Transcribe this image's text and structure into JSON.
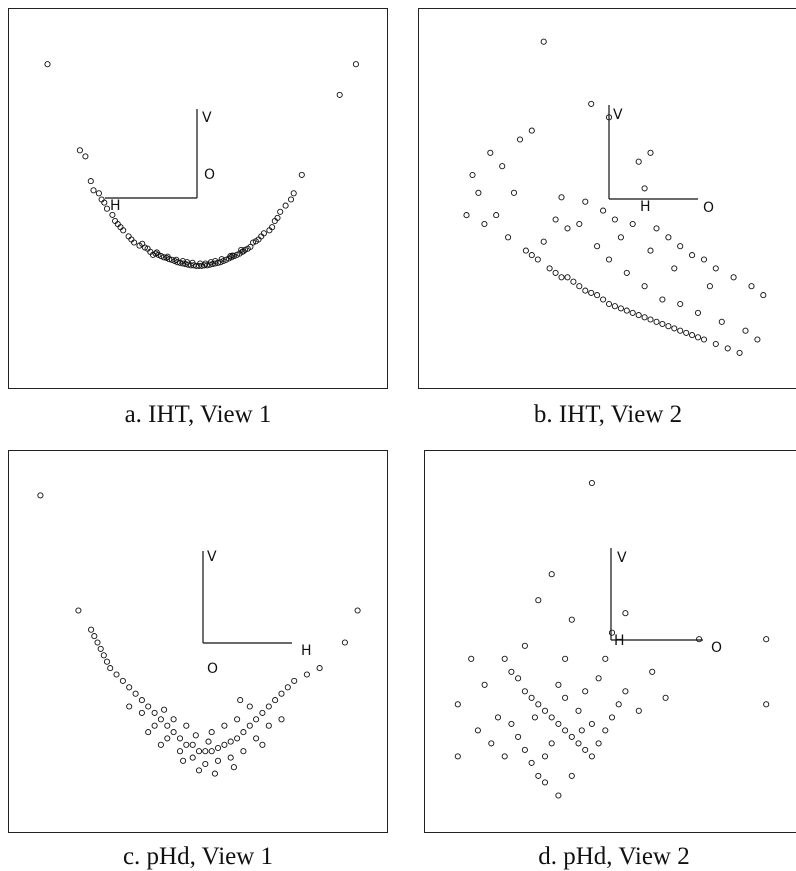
{
  "chart_data": [
    {
      "type": "scatter",
      "caption": "a. IHT, View 1",
      "axis_labels": {
        "v": "V",
        "o": "O",
        "h": "H"
      },
      "points": [
        [
          -2.8,
          3.1
        ],
        [
          2.9,
          3.1
        ],
        [
          2.6,
          2.6
        ],
        [
          -2.2,
          1.7
        ],
        [
          -2.1,
          1.6
        ],
        [
          1.9,
          1.3
        ],
        [
          -2.0,
          1.2
        ],
        [
          -1.95,
          1.05
        ],
        [
          -1.85,
          1.0
        ],
        [
          -1.8,
          0.9
        ],
        [
          -1.75,
          0.85
        ],
        [
          -1.7,
          0.75
        ],
        [
          1.75,
          1.0
        ],
        [
          1.7,
          0.9
        ],
        [
          1.6,
          0.8
        ],
        [
          1.5,
          0.7
        ],
        [
          1.45,
          0.6
        ],
        [
          1.4,
          0.55
        ],
        [
          -1.6,
          0.65
        ],
        [
          -1.55,
          0.55
        ],
        [
          -1.5,
          0.5
        ],
        [
          -1.45,
          0.45
        ],
        [
          -1.4,
          0.4
        ],
        [
          -1.3,
          0.3
        ],
        [
          -1.25,
          0.25
        ],
        [
          -1.2,
          0.2
        ],
        [
          1.35,
          0.45
        ],
        [
          1.3,
          0.4
        ],
        [
          1.2,
          0.35
        ],
        [
          1.15,
          0.3
        ],
        [
          1.1,
          0.25
        ],
        [
          1.0,
          0.2
        ],
        [
          -1.1,
          0.15
        ],
        [
          -1.0,
          0.12
        ],
        [
          -0.95,
          0.1
        ],
        [
          -0.9,
          0.05
        ],
        [
          -0.8,
          0.02
        ],
        [
          -0.75,
          0.0
        ],
        [
          -0.7,
          -0.02
        ],
        [
          -0.6,
          -0.05
        ],
        [
          -0.55,
          -0.07
        ],
        [
          -0.5,
          -0.08
        ],
        [
          -0.45,
          -0.1
        ],
        [
          -0.4,
          -0.12
        ],
        [
          -0.35,
          -0.13
        ],
        [
          -0.3,
          -0.14
        ],
        [
          -0.25,
          -0.15
        ],
        [
          -0.2,
          -0.16
        ],
        [
          -0.15,
          -0.17
        ],
        [
          -0.1,
          -0.17
        ],
        [
          -0.05,
          -0.18
        ],
        [
          0.0,
          -0.18
        ],
        [
          0.05,
          -0.18
        ],
        [
          0.1,
          -0.17
        ],
        [
          0.15,
          -0.17
        ],
        [
          0.2,
          -0.16
        ],
        [
          0.25,
          -0.15
        ],
        [
          0.3,
          -0.14
        ],
        [
          0.35,
          -0.13
        ],
        [
          0.4,
          -0.12
        ],
        [
          0.45,
          -0.1
        ],
        [
          0.5,
          -0.08
        ],
        [
          0.55,
          -0.06
        ],
        [
          0.6,
          -0.04
        ],
        [
          0.65,
          -0.02
        ],
        [
          0.7,
          0.0
        ],
        [
          0.75,
          0.02
        ],
        [
          0.8,
          0.05
        ],
        [
          0.85,
          0.08
        ],
        [
          0.9,
          0.1
        ],
        [
          0.95,
          0.13
        ],
        [
          -0.85,
          0.0
        ],
        [
          -0.65,
          -0.04
        ],
        [
          -0.42,
          -0.08
        ],
        [
          -0.22,
          -0.12
        ],
        [
          0.02,
          -0.14
        ],
        [
          0.22,
          -0.12
        ],
        [
          0.42,
          -0.07
        ],
        [
          0.62,
          -0.01
        ],
        [
          0.82,
          0.06
        ],
        [
          -1.05,
          0.18
        ],
        [
          1.05,
          0.22
        ],
        [
          -0.3,
          -0.1
        ],
        [
          0.3,
          -0.1
        ],
        [
          -0.12,
          -0.13
        ],
        [
          0.12,
          -0.14
        ],
        [
          -0.58,
          -0.03
        ],
        [
          0.58,
          -0.02
        ],
        [
          -0.78,
          0.04
        ],
        [
          0.78,
          0.08
        ]
      ],
      "xlim": [
        -3.4,
        3.4
      ],
      "ylim": [
        -2.1,
        3.9
      ]
    },
    {
      "type": "scatter",
      "caption": "b. IHT, View 2",
      "axis_labels": {
        "v": "V",
        "o": "O",
        "h": "H"
      },
      "points": [
        [
          -0.6,
          4.3
        ],
        [
          0.2,
          2.9
        ],
        [
          0.5,
          2.6
        ],
        [
          1.2,
          1.8
        ],
        [
          1.0,
          1.6
        ],
        [
          1.1,
          1.0
        ],
        [
          -0.3,
          0.8
        ],
        [
          0.1,
          0.7
        ],
        [
          0.4,
          0.5
        ],
        [
          0.6,
          0.3
        ],
        [
          0.9,
          0.2
        ],
        [
          1.3,
          0.1
        ],
        [
          1.5,
          -0.1
        ],
        [
          1.7,
          -0.3
        ],
        [
          1.9,
          -0.5
        ],
        [
          2.1,
          -0.6
        ],
        [
          2.3,
          -0.8
        ],
        [
          2.6,
          -1.0
        ],
        [
          2.9,
          -1.2
        ],
        [
          3.1,
          -1.4
        ],
        [
          -1.0,
          2.1
        ],
        [
          -0.8,
          2.3
        ],
        [
          -1.3,
          1.5
        ],
        [
          -1.5,
          1.8
        ],
        [
          -1.7,
          0.9
        ],
        [
          -1.4,
          0.4
        ],
        [
          -1.2,
          -0.1
        ],
        [
          -0.9,
          -0.4
        ],
        [
          -0.7,
          -0.6
        ],
        [
          -0.5,
          -0.8
        ],
        [
          -0.3,
          -1.0
        ],
        [
          -0.1,
          -1.1
        ],
        [
          0.1,
          -1.3
        ],
        [
          0.3,
          -1.4
        ],
        [
          0.5,
          -1.6
        ],
        [
          0.7,
          -1.7
        ],
        [
          0.9,
          -1.8
        ],
        [
          1.1,
          -1.9
        ],
        [
          1.3,
          -2.0
        ],
        [
          1.5,
          -2.1
        ],
        [
          1.7,
          -2.2
        ],
        [
          1.9,
          -2.3
        ],
        [
          2.1,
          -2.4
        ],
        [
          2.3,
          -2.5
        ],
        [
          2.5,
          -2.6
        ],
        [
          2.7,
          -2.7
        ],
        [
          -0.4,
          -0.9
        ],
        [
          -0.2,
          -1.0
        ],
        [
          0.0,
          -1.2
        ],
        [
          0.2,
          -1.35
        ],
        [
          0.4,
          -1.5
        ],
        [
          0.6,
          -1.65
        ],
        [
          0.8,
          -1.75
        ],
        [
          1.0,
          -1.85
        ],
        [
          1.2,
          -1.95
        ],
        [
          1.4,
          -2.05
        ],
        [
          1.6,
          -2.15
        ],
        [
          1.8,
          -2.25
        ],
        [
          2.0,
          -2.35
        ],
        [
          -0.8,
          -0.5
        ],
        [
          -0.6,
          -0.2
        ],
        [
          -0.2,
          0.1
        ],
        [
          0.3,
          -0.3
        ],
        [
          0.5,
          -0.6
        ],
        [
          0.8,
          -0.9
        ],
        [
          1.1,
          -1.2
        ],
        [
          1.4,
          -1.5
        ],
        [
          1.7,
          -1.6
        ],
        [
          2.0,
          -1.8
        ],
        [
          2.4,
          -2.0
        ],
        [
          2.8,
          -2.2
        ],
        [
          3.0,
          -2.4
        ],
        [
          -1.6,
          0.2
        ],
        [
          -1.1,
          0.9
        ],
        [
          -0.4,
          0.3
        ],
        [
          0.0,
          0.2
        ],
        [
          0.7,
          -0.1
        ],
        [
          1.2,
          -0.4
        ],
        [
          1.6,
          -0.8
        ],
        [
          2.2,
          -1.2
        ],
        [
          -1.8,
          1.3
        ],
        [
          -1.9,
          0.4
        ]
      ],
      "xlim": [
        -2.6,
        3.6
      ],
      "ylim": [
        -3.4,
        4.9
      ]
    },
    {
      "type": "scatter",
      "caption": "c. pHd, View 1",
      "axis_labels": {
        "v": "V",
        "o": "O",
        "h": "H"
      },
      "points": [
        [
          -2.6,
          3.4
        ],
        [
          2.4,
          1.6
        ],
        [
          2.2,
          1.1
        ],
        [
          -2.0,
          1.6
        ],
        [
          -1.8,
          1.3
        ],
        [
          -1.75,
          1.2
        ],
        [
          -1.7,
          1.1
        ],
        [
          -1.65,
          1.0
        ],
        [
          -1.6,
          0.9
        ],
        [
          -1.55,
          0.8
        ],
        [
          -1.5,
          0.7
        ],
        [
          -1.4,
          0.6
        ],
        [
          -1.3,
          0.5
        ],
        [
          -1.2,
          0.4
        ],
        [
          -1.1,
          0.3
        ],
        [
          -1.0,
          0.2
        ],
        [
          -0.9,
          0.1
        ],
        [
          -0.8,
          0.0
        ],
        [
          -0.7,
          -0.1
        ],
        [
          -0.6,
          -0.2
        ],
        [
          -0.5,
          -0.3
        ],
        [
          -0.4,
          -0.4
        ],
        [
          -0.3,
          -0.5
        ],
        [
          -0.2,
          -0.5
        ],
        [
          -0.1,
          -0.6
        ],
        [
          0.0,
          -0.6
        ],
        [
          0.1,
          -0.6
        ],
        [
          0.2,
          -0.55
        ],
        [
          0.3,
          -0.5
        ],
        [
          0.4,
          -0.45
        ],
        [
          0.5,
          -0.4
        ],
        [
          0.6,
          -0.3
        ],
        [
          0.7,
          -0.2
        ],
        [
          0.8,
          -0.1
        ],
        [
          0.9,
          0.0
        ],
        [
          1.0,
          0.1
        ],
        [
          1.1,
          0.2
        ],
        [
          1.2,
          0.3
        ],
        [
          1.3,
          0.4
        ],
        [
          1.4,
          0.5
        ],
        [
          1.6,
          0.6
        ],
        [
          1.8,
          0.7
        ],
        [
          -1.0,
          0.0
        ],
        [
          -0.8,
          -0.2
        ],
        [
          -0.6,
          -0.4
        ],
        [
          -0.4,
          -0.6
        ],
        [
          -0.2,
          -0.7
        ],
        [
          0.0,
          -0.8
        ],
        [
          0.2,
          -0.75
        ],
        [
          0.4,
          -0.7
        ],
        [
          0.6,
          -0.6
        ],
        [
          0.8,
          -0.4
        ],
        [
          1.0,
          -0.2
        ],
        [
          -0.9,
          -0.3
        ],
        [
          -0.5,
          -0.1
        ],
        [
          -0.3,
          -0.2
        ],
        [
          0.1,
          -0.3
        ],
        [
          0.3,
          -0.2
        ],
        [
          0.5,
          -0.1
        ],
        [
          0.7,
          0.1
        ],
        [
          -0.7,
          -0.5
        ],
        [
          -0.1,
          -0.9
        ],
        [
          0.15,
          -0.95
        ],
        [
          -1.2,
          0.1
        ],
        [
          1.2,
          -0.1
        ],
        [
          0.9,
          -0.5
        ],
        [
          -0.35,
          -0.75
        ],
        [
          0.45,
          -0.85
        ],
        [
          -0.65,
          0.05
        ],
        [
          0.55,
          0.2
        ],
        [
          -0.15,
          -0.35
        ],
        [
          0.05,
          -0.45
        ]
      ],
      "xlim": [
        -3.0,
        2.8
      ],
      "ylim": [
        -1.8,
        4.0
      ]
    },
    {
      "type": "scatter",
      "caption": "d. pHd, View 2",
      "axis_labels": {
        "v": "V",
        "o": "O",
        "h": "H"
      },
      "points": [
        [
          0.4,
          3.6
        ],
        [
          -0.2,
          2.2
        ],
        [
          -0.4,
          1.8
        ],
        [
          0.1,
          1.5
        ],
        [
          0.9,
          1.6
        ],
        [
          0.7,
          1.3
        ],
        [
          2.0,
          1.2
        ],
        [
          3.0,
          1.2
        ],
        [
          3.0,
          0.2
        ],
        [
          -1.4,
          0.9
        ],
        [
          -1.6,
          0.2
        ],
        [
          -1.6,
          -0.6
        ],
        [
          -1.2,
          0.5
        ],
        [
          -0.9,
          0.9
        ],
        [
          -0.8,
          0.7
        ],
        [
          -0.7,
          0.6
        ],
        [
          -0.6,
          0.4
        ],
        [
          -0.5,
          0.3
        ],
        [
          -0.4,
          0.2
        ],
        [
          -0.3,
          0.1
        ],
        [
          -0.2,
          0.0
        ],
        [
          -0.1,
          -0.1
        ],
        [
          0.0,
          -0.2
        ],
        [
          0.1,
          -0.3
        ],
        [
          0.2,
          -0.4
        ],
        [
          0.3,
          -0.5
        ],
        [
          0.4,
          -0.6
        ],
        [
          0.5,
          -0.4
        ],
        [
          0.6,
          -0.2
        ],
        [
          0.7,
          0.0
        ],
        [
          0.8,
          0.2
        ],
        [
          0.9,
          0.4
        ],
        [
          -0.8,
          -0.1
        ],
        [
          -0.7,
          -0.3
        ],
        [
          -0.6,
          -0.5
        ],
        [
          -0.5,
          -0.7
        ],
        [
          -0.4,
          -0.9
        ],
        [
          -0.3,
          -0.6
        ],
        [
          -0.2,
          -0.4
        ],
        [
          0.0,
          0.3
        ],
        [
          0.2,
          0.1
        ],
        [
          0.4,
          -0.1
        ],
        [
          -1.0,
          0.0
        ],
        [
          -1.1,
          -0.4
        ],
        [
          -0.9,
          -0.6
        ],
        [
          -0.1,
          0.5
        ],
        [
          0.3,
          0.4
        ],
        [
          0.5,
          0.6
        ],
        [
          -0.3,
          -1.0
        ],
        [
          -0.1,
          -1.2
        ],
        [
          0.1,
          -0.9
        ],
        [
          1.1,
          0.1
        ],
        [
          1.3,
          0.7
        ],
        [
          -1.3,
          -0.2
        ],
        [
          0.6,
          0.9
        ],
        [
          -0.6,
          1.1
        ],
        [
          0.0,
          0.9
        ],
        [
          1.5,
          0.3
        ],
        [
          -0.45,
          0.0
        ],
        [
          0.25,
          -0.2
        ]
      ],
      "xlim": [
        -2.0,
        3.4
      ],
      "ylim": [
        -1.7,
        4.0
      ]
    }
  ]
}
